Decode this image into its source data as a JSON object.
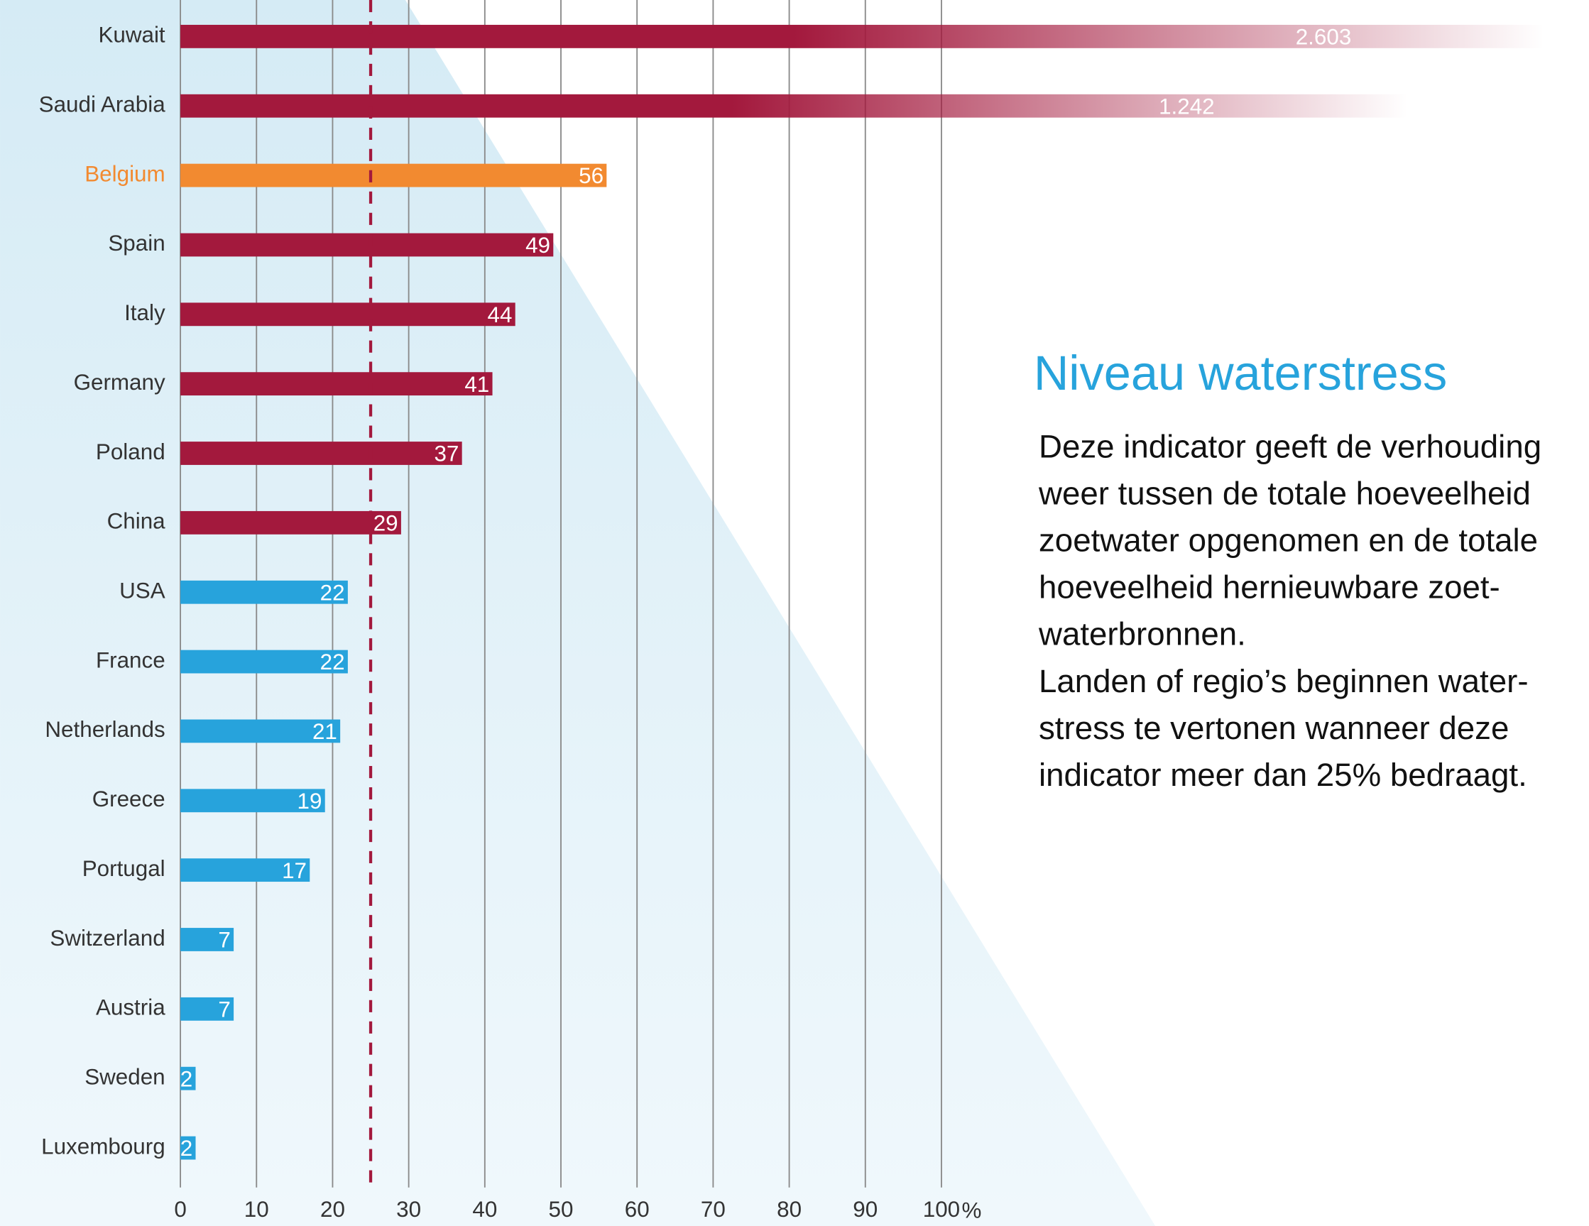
{
  "chart_data": {
    "type": "bar",
    "categories": [
      "Kuwait",
      "Saudi Arabia",
      "Belgium",
      "Spain",
      "Italy",
      "Germany",
      "Poland",
      "China",
      "USA",
      "France",
      "Netherlands",
      "Greece",
      "Portugal",
      "Switzerland",
      "Austria",
      "Sweden",
      "Luxembourg"
    ],
    "values": [
      2603,
      1242,
      56,
      49,
      44,
      41,
      37,
      29,
      22,
      22,
      21,
      19,
      17,
      7,
      7,
      2,
      2
    ],
    "value_labels": [
      "2.603",
      "1.242",
      "56",
      "49",
      "44",
      "41",
      "37",
      "29",
      "22",
      "22",
      "21",
      "19",
      "17",
      "7",
      "7",
      "2",
      "2"
    ],
    "colors": [
      "#a3193d",
      "#a3193d",
      "#f28a30",
      "#a3193d",
      "#a3193d",
      "#a3193d",
      "#a3193d",
      "#a3193d",
      "#27a3dc",
      "#27a3dc",
      "#27a3dc",
      "#27a3dc",
      "#27a3dc",
      "#27a3dc",
      "#27a3dc",
      "#27a3dc",
      "#27a3dc"
    ],
    "highlight_color": "#f28a30",
    "xlim": [
      0,
      100
    ],
    "xticks": [
      0,
      10,
      20,
      30,
      40,
      50,
      60,
      70,
      80,
      90,
      100
    ],
    "x_label": "%",
    "grid": true,
    "threshold": 25,
    "threshold_color": "#a3193d",
    "annotation": {
      "title": "Niveau waterstress",
      "lines": [
        "Deze indicator geeft de verhouding",
        "weer tussen de totale hoeveelheid",
        "zoetwater opgenomen en de totale",
        "hoeveelheid hernieuwbare zoet-",
        "waterbronnen.",
        "Landen of regio’s beginnen water-",
        "stress te vertonen wanneer deze",
        "indicator meer dan 25% bedraagt."
      ]
    }
  }
}
